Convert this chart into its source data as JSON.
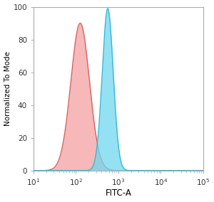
{
  "title": "",
  "xlabel": "FITC-A",
  "ylabel": "Normalized To Mode",
  "xlim_log": [
    1,
    5
  ],
  "ylim": [
    0,
    100
  ],
  "yticks": [
    0,
    20,
    40,
    60,
    80,
    100
  ],
  "xtick_positions": [
    1,
    2,
    3,
    4,
    5
  ],
  "xtick_labels": [
    "10$^1$",
    "10$^2$",
    "10$^3$",
    "10$^4$",
    "10$^5$"
  ],
  "red_peak_log10": 2.1,
  "red_peak_height": 90,
  "red_sigma": 0.22,
  "blue_peak_log10": 2.75,
  "blue_peak_height": 99,
  "blue_sigma": 0.13,
  "red_fill_color": "#F4A0A0",
  "red_edge_color": "#D96060",
  "blue_fill_color": "#70D8F0",
  "blue_edge_color": "#30B8D8",
  "fill_alpha": 0.75,
  "background_color": "#ffffff",
  "figure_width": 3.0,
  "figure_height": 2.84,
  "dpi": 100
}
